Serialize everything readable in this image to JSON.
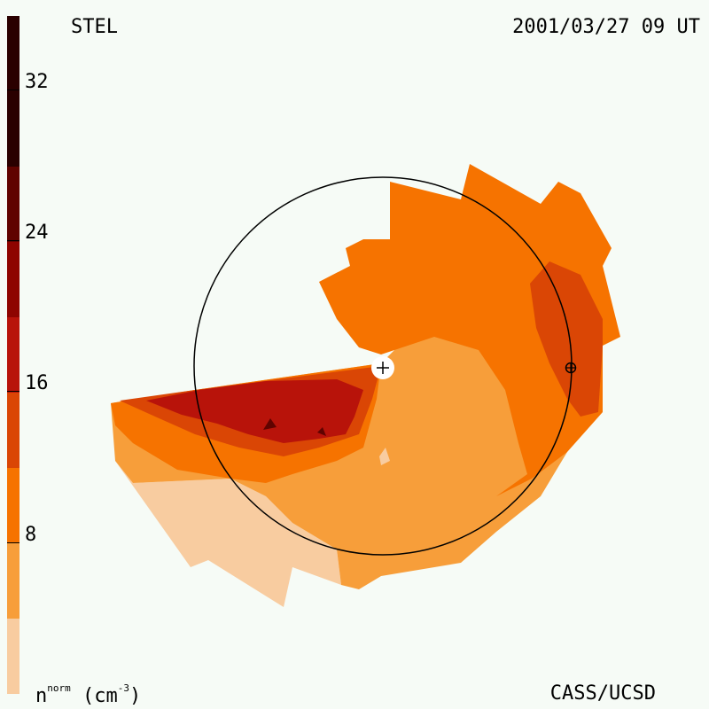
{
  "header": {
    "source": "STEL",
    "timestamp": "2001/03/27 09 UT"
  },
  "footer": {
    "credit": "CASS/UCSD",
    "units_base": "n",
    "units_sup": "norm",
    "units_rest_open": " (cm",
    "units_exp": "-3",
    "units_rest_close": ")"
  },
  "colorbar": {
    "ticks": [
      "32",
      "24",
      "16",
      "8"
    ],
    "tick_values": [
      32,
      24,
      16,
      8
    ],
    "range": [
      0,
      36
    ],
    "colors": [
      "#f8ccA0",
      "#f79e3a",
      "#f67300",
      "#da4605",
      "#b8130a",
      "#8e0400",
      "#600300",
      "#2a0000"
    ]
  },
  "markers": {
    "sun_symbol": "+",
    "earth_symbol": "⊕"
  }
}
